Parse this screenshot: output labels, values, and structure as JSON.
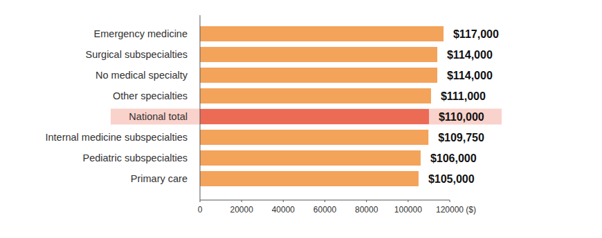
{
  "chart_data": {
    "type": "bar",
    "orientation": "horizontal",
    "categories": [
      "Emergency medicine",
      "Surgical subspecialties",
      "No medical specialty",
      "Other specialties",
      "National total",
      "Internal medicine subspecialties",
      "Pediatric subspecialties",
      "Primary care"
    ],
    "values": [
      117000,
      114000,
      114000,
      111000,
      110000,
      109750,
      106000,
      105000
    ],
    "value_labels": [
      "$117,000",
      "$114,000",
      "$114,000",
      "$111,000",
      "$110,000",
      "$109,750",
      "$106,000",
      "$105,000"
    ],
    "colors": [
      "#f3a35a",
      "#f3a35a",
      "#f3a35a",
      "#f3a35a",
      "#ec6b55",
      "#f3a35a",
      "#f3a35a",
      "#f3a35a"
    ],
    "xlim": [
      0,
      120000
    ],
    "xticks": [
      0,
      20000,
      40000,
      60000,
      80000,
      100000,
      {
        "value": 120000,
        "label": "120000 ($)"
      }
    ],
    "data_labels": true,
    "grid": false
  }
}
